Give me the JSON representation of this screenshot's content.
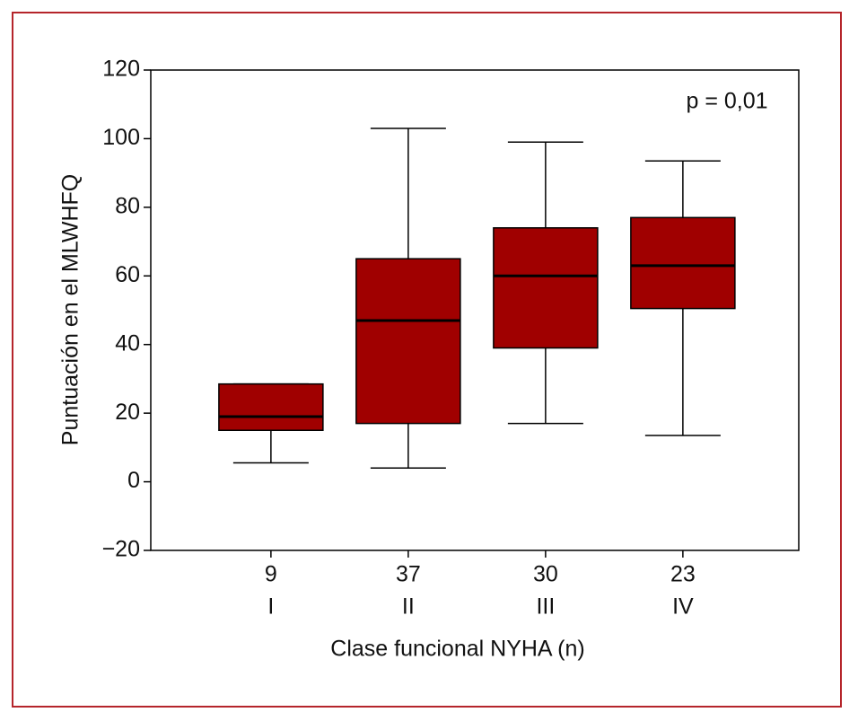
{
  "chart_data": {
    "type": "box",
    "x_label": "Clase funcional NYHA (n)",
    "y_label": "Puntuación en el MLWHFQ",
    "annotation": "p = 0,01",
    "categories": [
      "I",
      "II",
      "III",
      "IV"
    ],
    "n": [
      "9",
      "37",
      "30",
      "23"
    ],
    "min": [
      5.5,
      4,
      17,
      13.5
    ],
    "q1": [
      15,
      17,
      39,
      50.5
    ],
    "median": [
      19,
      47,
      60,
      63
    ],
    "q3": [
      28.5,
      65,
      74,
      77
    ],
    "max": [
      28.5,
      103,
      99,
      93.5
    ],
    "color": "#a00000",
    "ylim": [
      -20,
      120
    ],
    "yticks": [
      {
        "value": -20,
        "label": "−20"
      },
      0,
      20,
      40,
      60,
      80,
      100,
      120
    ]
  }
}
